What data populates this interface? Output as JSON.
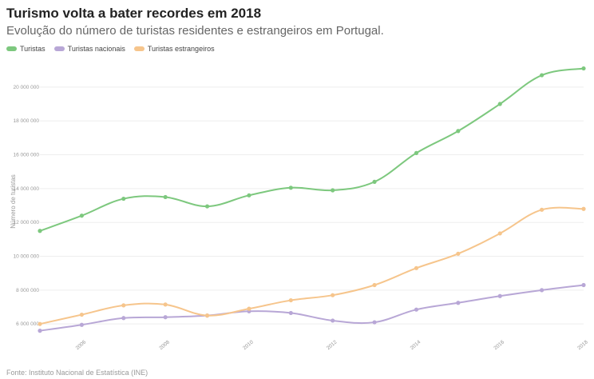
{
  "title": "Turismo volta a bater recordes em 2018",
  "subtitle": "Evolução do número de turistas residentes e estrangeiros em Portugal.",
  "source": "Fonte: Instituto Nacional de Estatística (INE)",
  "legend": [
    {
      "label": "Turistas",
      "color": "#7dc87e"
    },
    {
      "label": "Turistas nacionais",
      "color": "#b8a7d6"
    },
    {
      "label": "Turistas estrangeiros",
      "color": "#f6c58c"
    }
  ],
  "chart_data": {
    "type": "line",
    "title": "Turismo volta a bater recordes em 2018",
    "xlabel": "",
    "ylabel": "Número de turistas",
    "x": [
      2005,
      2006,
      2007,
      2008,
      2009,
      2010,
      2011,
      2012,
      2013,
      2014,
      2015,
      2016,
      2017,
      2018
    ],
    "xticks": [
      2006,
      2008,
      2010,
      2012,
      2014,
      2016,
      2018
    ],
    "yticks": [
      6000000,
      8000000,
      10000000,
      12000000,
      14000000,
      16000000,
      18000000,
      20000000
    ],
    "ytick_labels": [
      "6 000 000",
      "8 000 000",
      "10 000 000",
      "12 000 000",
      "14 000 000",
      "16 000 000",
      "18 000 000",
      "20 000 000"
    ],
    "ylim": [
      5300000,
      21600000
    ],
    "xlim": [
      2005,
      2018
    ],
    "series": [
      {
        "name": "Turistas",
        "color": "#7dc87e",
        "values": [
          11500000,
          12400000,
          13400000,
          13500000,
          12950000,
          13600000,
          14050000,
          13900000,
          14400000,
          16100000,
          17400000,
          19000000,
          20700000,
          21100000
        ]
      },
      {
        "name": "Turistas nacionais",
        "color": "#b8a7d6",
        "values": [
          5600000,
          5950000,
          6350000,
          6400000,
          6500000,
          6750000,
          6650000,
          6200000,
          6100000,
          6850000,
          7250000,
          7650000,
          8000000,
          8300000
        ]
      },
      {
        "name": "Turistas estrangeiros",
        "color": "#f6c58c",
        "values": [
          6000000,
          6550000,
          7100000,
          7150000,
          6500000,
          6900000,
          7400000,
          7700000,
          8300000,
          9300000,
          10150000,
          11350000,
          12750000,
          12800000
        ]
      }
    ]
  }
}
